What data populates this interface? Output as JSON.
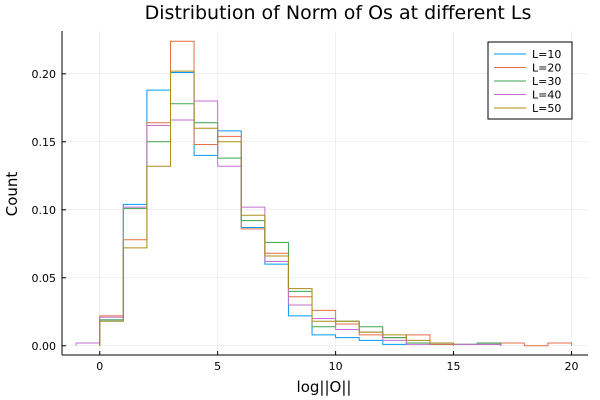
{
  "chart_data": {
    "type": "histogram",
    "title": "Distribution of Norm of Os at different Ls",
    "xlabel": "log||O||",
    "ylabel": "Count",
    "xlim": [
      -1.6,
      20.7
    ],
    "ylim": [
      -0.0068,
      0.2315
    ],
    "xticks": [
      0,
      5,
      10,
      15,
      20
    ],
    "yticks": [
      0.0,
      0.05,
      0.1,
      0.15,
      0.2
    ],
    "xtick_labels": [
      "0",
      "5",
      "10",
      "15",
      "20"
    ],
    "ytick_labels": [
      "0.00",
      "0.05",
      "0.10",
      "0.15",
      "0.20"
    ],
    "grid": true,
    "legend_position": "top-right",
    "series": [
      {
        "name": "L=10",
        "color": "#009af9",
        "edges": [
          0,
          1,
          2,
          3,
          4,
          5,
          6,
          7,
          8,
          9,
          10,
          11,
          12,
          13,
          14,
          15,
          16,
          17
        ],
        "values": [
          0.019,
          0.104,
          0.188,
          0.201,
          0.14,
          0.158,
          0.087,
          0.06,
          0.022,
          0.008,
          0.006,
          0.004,
          0.001,
          0.002,
          0.001,
          0.001,
          0.001
        ]
      },
      {
        "name": "L=20",
        "color": "#e26f46",
        "edges": [
          0,
          1,
          2,
          3,
          4,
          5,
          6,
          7,
          8,
          9,
          10,
          11,
          12,
          13,
          14,
          15,
          16,
          17,
          18,
          19,
          20
        ],
        "values": [
          0.022,
          0.078,
          0.164,
          0.224,
          0.148,
          0.154,
          0.086,
          0.068,
          0.036,
          0.026,
          0.016,
          0.008,
          0.006,
          0.008,
          0.001,
          0.001,
          0.001,
          0.002,
          0.0,
          0.002
        ]
      },
      {
        "name": "L=30",
        "color": "#3da44d",
        "edges": [
          0,
          1,
          2,
          3,
          4,
          5,
          6,
          7,
          8,
          9,
          10,
          11,
          12,
          13,
          14,
          15,
          16,
          17
        ],
        "values": [
          0.019,
          0.101,
          0.15,
          0.178,
          0.164,
          0.138,
          0.092,
          0.076,
          0.04,
          0.014,
          0.018,
          0.014,
          0.006,
          0.002,
          0.002,
          0.001,
          0.002
        ]
      },
      {
        "name": "L=40",
        "color": "#c271d2",
        "edges": [
          -1,
          0,
          1,
          2,
          3,
          4,
          5,
          6,
          7,
          8,
          9,
          10,
          11,
          12,
          13,
          14,
          15,
          16,
          17
        ],
        "values": [
          0.002,
          0.021,
          0.102,
          0.162,
          0.166,
          0.18,
          0.132,
          0.102,
          0.062,
          0.03,
          0.02,
          0.012,
          0.01,
          0.004,
          0.001,
          0.002,
          0.001,
          0.001
        ]
      },
      {
        "name": "L=50",
        "color": "#ac8d18",
        "edges": [
          0,
          1,
          2,
          3,
          4,
          5,
          6,
          7,
          8,
          9,
          10,
          11,
          12,
          13,
          14,
          15
        ],
        "values": [
          0.018,
          0.072,
          0.132,
          0.202,
          0.16,
          0.15,
          0.096,
          0.066,
          0.042,
          0.018,
          0.018,
          0.01,
          0.008,
          0.004,
          0.002
        ]
      }
    ]
  }
}
